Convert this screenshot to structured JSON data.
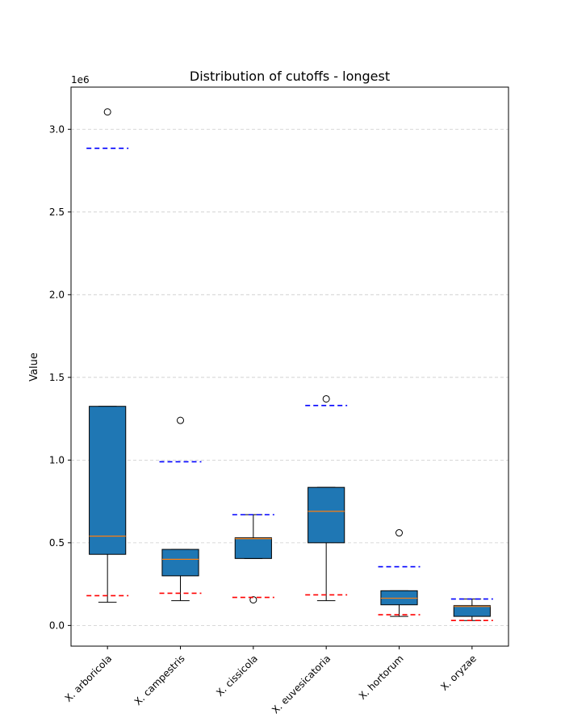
{
  "chart_data": {
    "type": "box",
    "title": "Distribution of cutoffs - longest",
    "ylabel": "Value",
    "xlabel": "",
    "y_offset_label": "1e6",
    "ylim": [
      -125000,
      3255000
    ],
    "yticks": [
      0.0,
      0.5,
      1.0,
      1.5,
      2.0,
      2.5,
      3.0
    ],
    "tick_scale": 1000000,
    "grid": "y-dashed",
    "categories": [
      "X. arboricola",
      "X. campestris",
      "X. cissicola",
      "X. euvesicatoria",
      "X. hortorum",
      "X. oryzae"
    ],
    "boxes": [
      {
        "min": 140000,
        "q1": 430000,
        "median": 540000,
        "q3": 1325000,
        "max": 1325000,
        "fliers": [
          3105000
        ],
        "upper_cutoff": 2885000,
        "lower_cutoff": 180000
      },
      {
        "min": 150000,
        "q1": 300000,
        "median": 400000,
        "q3": 460000,
        "max": 460000,
        "fliers": [
          1240000
        ],
        "upper_cutoff": 990000,
        "lower_cutoff": 195000
      },
      {
        "min": 405000,
        "q1": 405000,
        "median": 525000,
        "q3": 530000,
        "max": 670000,
        "fliers": [
          155000
        ],
        "upper_cutoff": 670000,
        "lower_cutoff": 170000
      },
      {
        "min": 150000,
        "q1": 500000,
        "median": 690000,
        "q3": 835000,
        "max": 835000,
        "fliers": [
          1370000
        ],
        "upper_cutoff": 1330000,
        "lower_cutoff": 185000
      },
      {
        "min": 55000,
        "q1": 125000,
        "median": 165000,
        "q3": 210000,
        "max": 210000,
        "fliers": [
          560000
        ],
        "upper_cutoff": 355000,
        "lower_cutoff": 65000
      },
      {
        "min": 30000,
        "q1": 55000,
        "median": 115000,
        "q3": 120000,
        "max": 160000,
        "fliers": [],
        "upper_cutoff": 160000,
        "lower_cutoff": 30000
      }
    ],
    "colors": {
      "box_fill": "#1f77b4",
      "median": "#ff7f0e",
      "upper_cutoff": "#0000ff",
      "lower_cutoff": "#ff0000",
      "grid": "#cccccc"
    }
  }
}
